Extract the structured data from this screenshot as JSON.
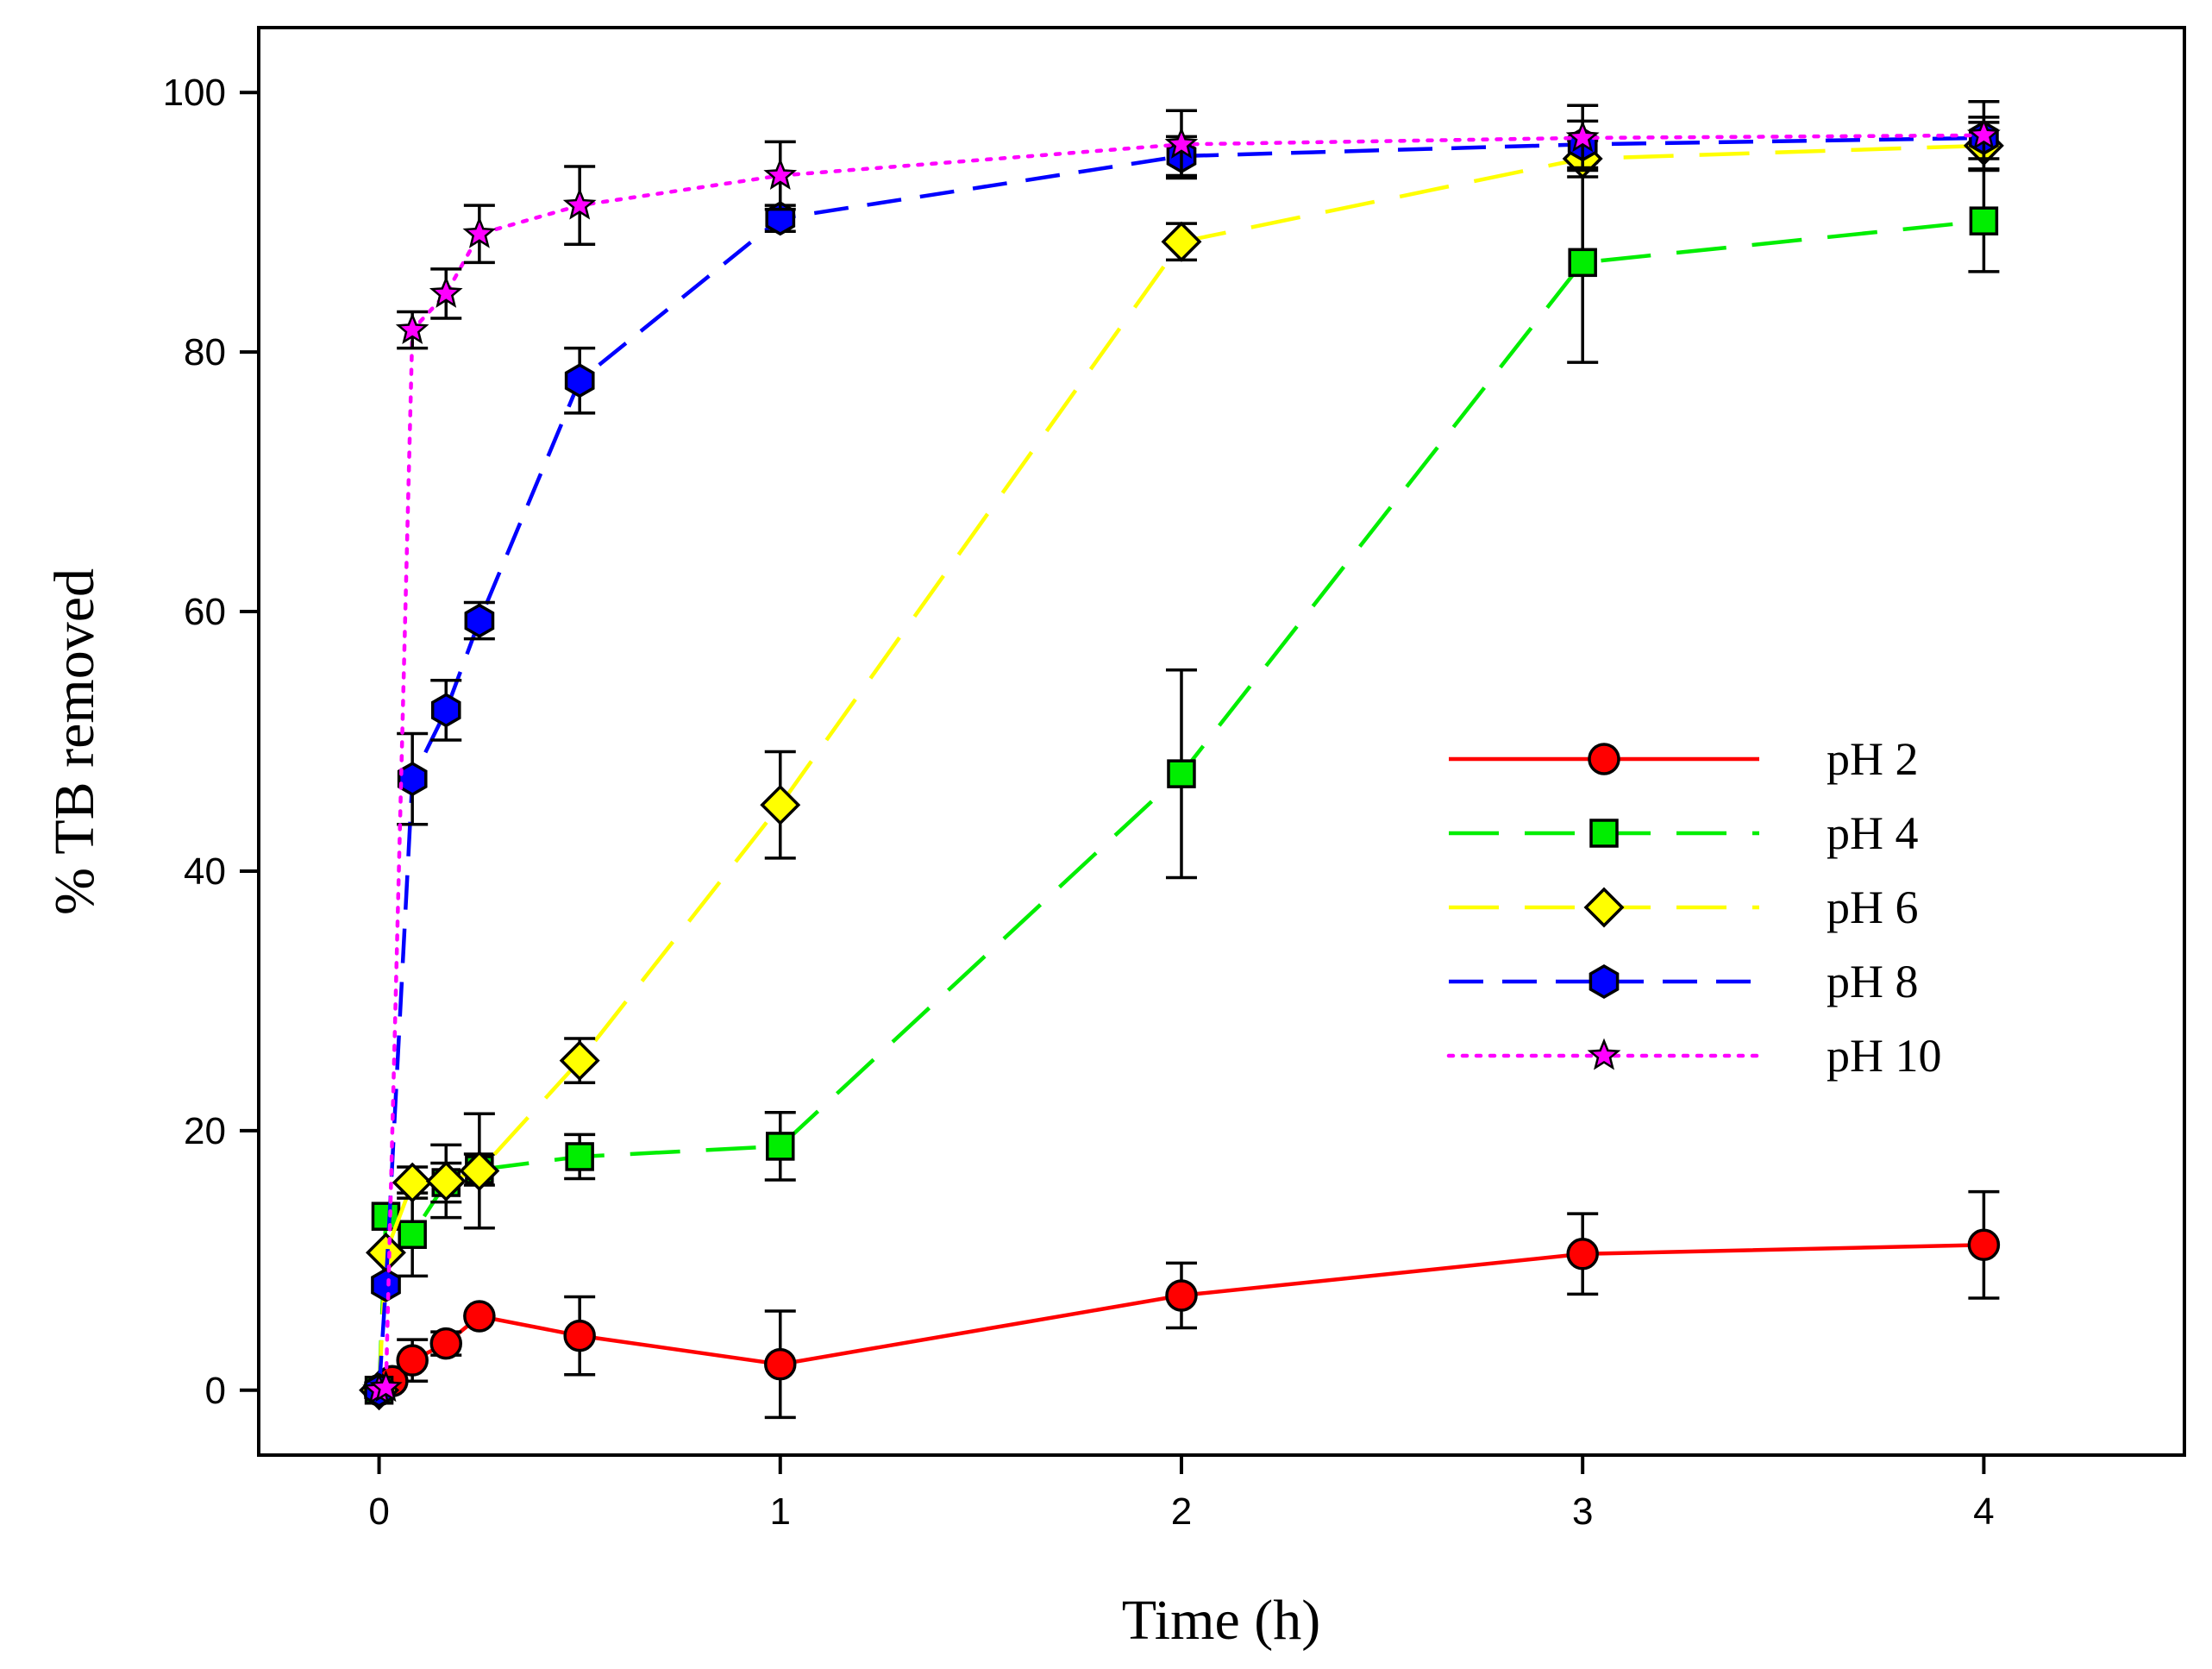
{
  "chart_data": {
    "type": "line",
    "title": "",
    "xlabel": "Time (h)",
    "ylabel": "% TB removed",
    "xlim": [
      -0.3,
      4.5
    ],
    "ylim": [
      -5,
      105
    ],
    "x_ticks": [
      0,
      1,
      2,
      3,
      4
    ],
    "y_ticks": [
      0,
      20,
      40,
      60,
      80,
      100
    ],
    "x_tick_labels": [
      "0",
      "1",
      "2",
      "3",
      "4"
    ],
    "y_tick_labels": [
      "0",
      "20",
      "40",
      "60",
      "80",
      "100"
    ],
    "grid": false,
    "legend_position": "center-right",
    "series": [
      {
        "name": "pH 2",
        "color": "#ff0000",
        "line_style": "solid",
        "marker": "circle",
        "x": [
          0,
          0.033,
          0.083,
          0.167,
          0.25,
          0.5,
          1,
          2,
          3,
          4
        ],
        "y": [
          0,
          0.7,
          2.3,
          3.6,
          5.7,
          4.2,
          2.0,
          7.3,
          10.5,
          11.2
        ],
        "err": [
          0.5,
          0.6,
          1.6,
          0.9,
          0.5,
          3.0,
          4.1,
          2.5,
          3.1,
          4.1
        ]
      },
      {
        "name": "pH 4",
        "color": "#00ee00",
        "line_style": "long-dash",
        "marker": "square",
        "x": [
          0,
          0.017,
          0.083,
          0.167,
          0.25,
          0.5,
          1,
          2,
          3,
          4
        ],
        "y": [
          0,
          13.4,
          12.0,
          16.0,
          17.0,
          18.0,
          18.8,
          47.5,
          86.9,
          90.1
        ],
        "err": [
          0.5,
          0.6,
          3.2,
          1.5,
          1.2,
          1.7,
          2.6,
          8.0,
          7.7,
          3.9
        ]
      },
      {
        "name": "pH 6",
        "color": "#ffff00",
        "line_style": "long-dash",
        "marker": "diamond",
        "x": [
          0,
          0.017,
          0.083,
          0.167,
          0.25,
          0.5,
          1,
          2,
          3,
          4
        ],
        "y": [
          0,
          10.6,
          16.0,
          16.1,
          16.9,
          25.4,
          45.1,
          88.5,
          94.9,
          95.9
        ],
        "err": [
          0.5,
          0.6,
          1.2,
          2.8,
          4.4,
          1.7,
          4.1,
          1.4,
          1.4,
          1.8
        ]
      },
      {
        "name": "pH 8",
        "color": "#0000ff",
        "line_style": "medium-dash",
        "marker": "hexagon",
        "x": [
          0,
          0.017,
          0.083,
          0.167,
          0.25,
          0.5,
          1,
          2,
          3,
          4
        ],
        "y": [
          0,
          8.1,
          47.1,
          52.4,
          59.3,
          77.8,
          90.3,
          95.1,
          96.0,
          96.5
        ],
        "err": [
          0.5,
          0.6,
          3.5,
          2.3,
          1.4,
          2.5,
          1.0,
          1.5,
          1.8,
          1.6
        ]
      },
      {
        "name": "pH 10",
        "color": "#ff00ff",
        "line_style": "dotted",
        "marker": "star",
        "x": [
          0,
          0.017,
          0.083,
          0.167,
          0.25,
          0.5,
          1,
          2,
          3,
          4
        ],
        "y": [
          0,
          0.2,
          81.7,
          84.5,
          89.1,
          91.3,
          93.6,
          96.0,
          96.5,
          96.7
        ],
        "err": [
          0.3,
          0.3,
          1.4,
          1.9,
          2.2,
          3.0,
          2.6,
          2.6,
          2.5,
          2.6
        ]
      }
    ]
  }
}
